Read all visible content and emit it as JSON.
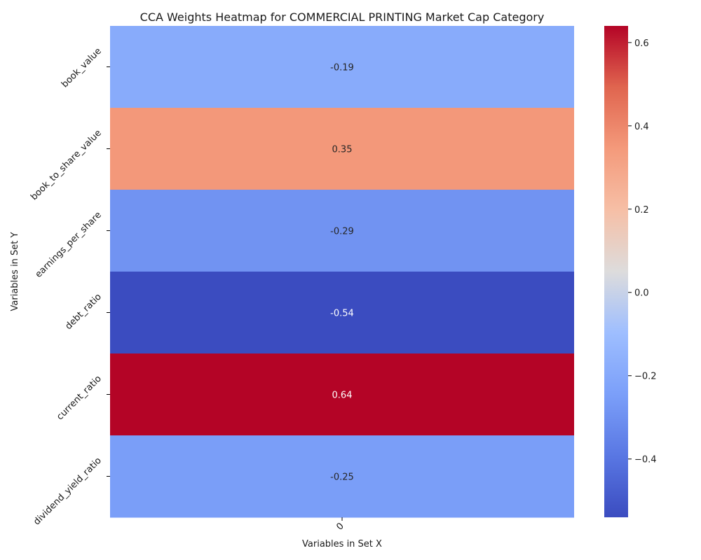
{
  "chart_data": {
    "type": "heatmap",
    "title": "CCA Weights Heatmap for COMMERCIAL PRINTING Market Cap Category",
    "xlabel": "Variables in Set X",
    "ylabel": "Variables in Set Y",
    "x_categories": [
      "0"
    ],
    "y_categories": [
      "book_value",
      "book_to_share_value",
      "earnings_per_share",
      "debt_ratio",
      "current_ratio",
      "dividend_yield_ratio"
    ],
    "values": [
      [
        -0.19
      ],
      [
        0.35
      ],
      [
        -0.29
      ],
      [
        -0.54
      ],
      [
        0.64
      ],
      [
        -0.25
      ]
    ],
    "value_labels": [
      "-0.19",
      "0.35",
      "-0.29",
      "-0.54",
      "0.64",
      "-0.25"
    ],
    "colormap": "coolwarm",
    "colorbar": {
      "vmin": -0.54,
      "vmax": 0.64,
      "ticks": [
        0.6,
        0.4,
        0.2,
        0.0,
        -0.2,
        -0.4
      ],
      "tick_labels": [
        "0.6",
        "0.4",
        "0.2",
        "0.0",
        "−0.2",
        "−0.4"
      ]
    }
  }
}
